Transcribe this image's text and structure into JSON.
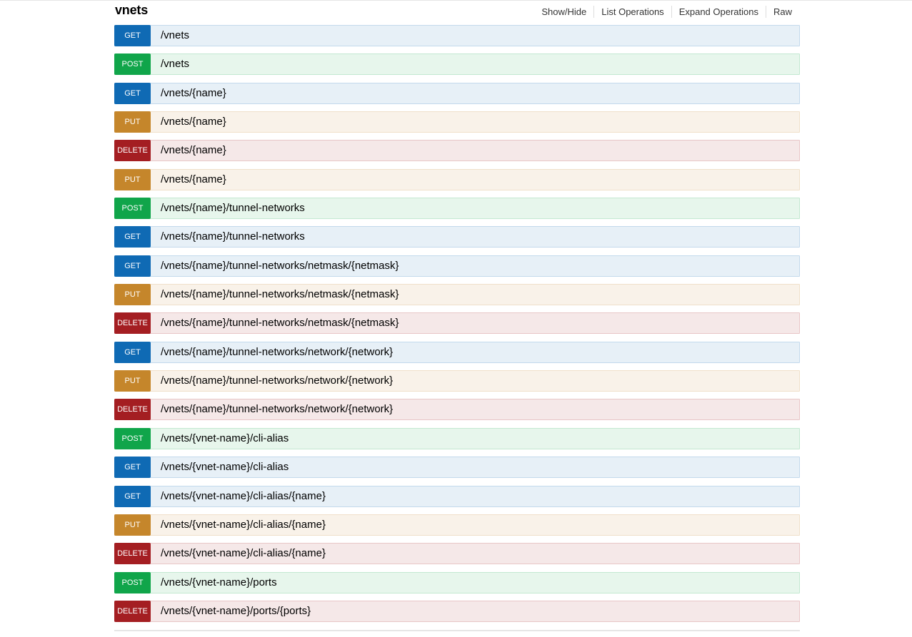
{
  "resource": {
    "name": "vnets",
    "options": [
      "Show/Hide",
      "List Operations",
      "Expand Operations",
      "Raw"
    ]
  },
  "operations": [
    {
      "method": "GET",
      "path": "/vnets"
    },
    {
      "method": "POST",
      "path": "/vnets"
    },
    {
      "method": "GET",
      "path": "/vnets/{name}"
    },
    {
      "method": "PUT",
      "path": "/vnets/{name}"
    },
    {
      "method": "DELETE",
      "path": "/vnets/{name}"
    },
    {
      "method": "PUT",
      "path": "/vnets/{name}"
    },
    {
      "method": "POST",
      "path": "/vnets/{name}/tunnel-networks"
    },
    {
      "method": "GET",
      "path": "/vnets/{name}/tunnel-networks"
    },
    {
      "method": "GET",
      "path": "/vnets/{name}/tunnel-networks/netmask/{netmask}"
    },
    {
      "method": "PUT",
      "path": "/vnets/{name}/tunnel-networks/netmask/{netmask}"
    },
    {
      "method": "DELETE",
      "path": "/vnets/{name}/tunnel-networks/netmask/{netmask}"
    },
    {
      "method": "GET",
      "path": "/vnets/{name}/tunnel-networks/network/{network}"
    },
    {
      "method": "PUT",
      "path": "/vnets/{name}/tunnel-networks/network/{network}"
    },
    {
      "method": "DELETE",
      "path": "/vnets/{name}/tunnel-networks/network/{network}"
    },
    {
      "method": "POST",
      "path": "/vnets/{vnet-name}/cli-alias"
    },
    {
      "method": "GET",
      "path": "/vnets/{vnet-name}/cli-alias"
    },
    {
      "method": "GET",
      "path": "/vnets/{vnet-name}/cli-alias/{name}"
    },
    {
      "method": "PUT",
      "path": "/vnets/{vnet-name}/cli-alias/{name}"
    },
    {
      "method": "DELETE",
      "path": "/vnets/{vnet-name}/cli-alias/{name}"
    },
    {
      "method": "POST",
      "path": "/vnets/{vnet-name}/ports"
    },
    {
      "method": "DELETE",
      "path": "/vnets/{vnet-name}/ports/{ports}"
    }
  ],
  "colors": {
    "get": "#0f6ab4",
    "post": "#10a54a",
    "put": "#c5862b",
    "delete": "#a41e22"
  }
}
